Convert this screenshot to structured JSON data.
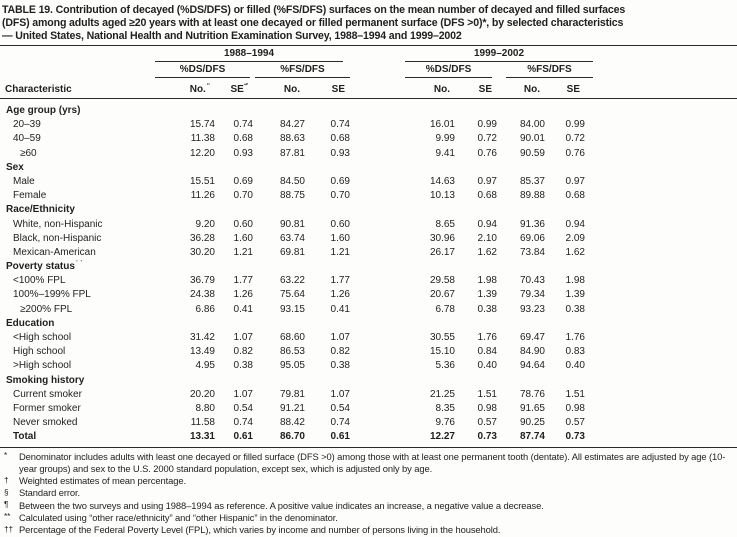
{
  "title_lines": [
    "TABLE 19. Contribution of decayed (%DS/DFS) or filled (%FS/DFS) surfaces on the mean number of decayed and filled surfaces",
    "(DFS) among adults aged ≥20 years with at least one decayed or filled permanent surface (DFS >0)*, by selected characteristics",
    "— United States, National Health and Nutrition Examination Survey, 1988–1994 and 1999–2002"
  ],
  "table": {
    "period_headers": {
      "p1": "1988–1994",
      "p2": "1999–2002"
    },
    "measure_headers": {
      "m1": "%DS/DFS",
      "m2": "%FS/DFS",
      "m3": "%DS/DFS",
      "m4": "%FS/DFS"
    },
    "characteristic_header": "Characteristic",
    "col_headers": [
      {
        "label": "No.",
        "sup": "¶"
      },
      {
        "label": "SE",
        "sup": "§"
      },
      {
        "label": "No.",
        "sup": ""
      },
      {
        "label": "SE",
        "sup": ""
      },
      {
        "label": "No.",
        "sup": ""
      },
      {
        "label": "SE",
        "sup": ""
      },
      {
        "label": "No.",
        "sup": ""
      },
      {
        "label": "SE",
        "sup": ""
      }
    ],
    "rows": [
      {
        "type": "section",
        "label": "Age group (yrs)",
        "sup": ""
      },
      {
        "type": "data",
        "indent": 1,
        "label": "20–39",
        "sup": "",
        "values": [
          "15.74",
          "0.74",
          "84.27",
          "0.74",
          "16.01",
          "0.99",
          "84.00",
          "0.99"
        ]
      },
      {
        "type": "data",
        "indent": 1,
        "label": "40–59",
        "sup": "",
        "values": [
          "11.38",
          "0.68",
          "88.63",
          "0.68",
          "9.99",
          "0.72",
          "90.01",
          "0.72"
        ]
      },
      {
        "type": "data",
        "indent": 2,
        "label": "≥60",
        "sup": "",
        "values": [
          "12.20",
          "0.93",
          "87.81",
          "0.93",
          "9.41",
          "0.76",
          "90.59",
          "0.76"
        ]
      },
      {
        "type": "section",
        "label": "Sex",
        "sup": ""
      },
      {
        "type": "data",
        "indent": 1,
        "label": "Male",
        "sup": "",
        "values": [
          "15.51",
          "0.69",
          "84.50",
          "0.69",
          "14.63",
          "0.97",
          "85.37",
          "0.97"
        ]
      },
      {
        "type": "data",
        "indent": 1,
        "label": "Female",
        "sup": "",
        "values": [
          "11.26",
          "0.70",
          "88.75",
          "0.70",
          "10.13",
          "0.68",
          "89.88",
          "0.68"
        ]
      },
      {
        "type": "section",
        "label": "Race/Ethnicity",
        "sup": "**"
      },
      {
        "type": "data",
        "indent": 1,
        "label": "White, non-Hispanic",
        "sup": "",
        "values": [
          "9.20",
          "0.60",
          "90.81",
          "0.60",
          "8.65",
          "0.94",
          "91.36",
          "0.94"
        ]
      },
      {
        "type": "data",
        "indent": 1,
        "label": "Black, non-Hispanic",
        "sup": "",
        "values": [
          "36.28",
          "1.60",
          "63.74",
          "1.60",
          "30.96",
          "2.10",
          "69.06",
          "2.09"
        ]
      },
      {
        "type": "data",
        "indent": 1,
        "label": "Mexican-American",
        "sup": "",
        "values": [
          "30.20",
          "1.21",
          "69.81",
          "1.21",
          "26.17",
          "1.62",
          "73.84",
          "1.62"
        ]
      },
      {
        "type": "section",
        "label": "Poverty status",
        "sup": "††"
      },
      {
        "type": "data",
        "indent": 1,
        "label": "<100% FPL",
        "sup": "",
        "values": [
          "36.79",
          "1.77",
          "63.22",
          "1.77",
          "29.58",
          "1.98",
          "70.43",
          "1.98"
        ]
      },
      {
        "type": "data",
        "indent": 1,
        "label": "100%–199% FPL",
        "sup": "",
        "values": [
          "24.38",
          "1.26",
          "75.64",
          "1.26",
          "20.67",
          "1.39",
          "79.34",
          "1.39"
        ]
      },
      {
        "type": "data",
        "indent": 2,
        "label": "≥200% FPL",
        "sup": "",
        "values": [
          "6.86",
          "0.41",
          "93.15",
          "0.41",
          "6.78",
          "0.38",
          "93.23",
          "0.38"
        ]
      },
      {
        "type": "section",
        "label": "Education",
        "sup": ""
      },
      {
        "type": "data",
        "indent": 1,
        "label": "<High school",
        "sup": "",
        "values": [
          "31.42",
          "1.07",
          "68.60",
          "1.07",
          "30.55",
          "1.76",
          "69.47",
          "1.76"
        ]
      },
      {
        "type": "data",
        "indent": 1,
        "label": "High school",
        "sup": "",
        "values": [
          "13.49",
          "0.82",
          "86.53",
          "0.82",
          "15.10",
          "0.84",
          "84.90",
          "0.83"
        ]
      },
      {
        "type": "data",
        "indent": 1,
        "label": ">High school",
        "sup": "",
        "values": [
          "4.95",
          "0.38",
          "95.05",
          "0.38",
          "5.36",
          "0.40",
          "94.64",
          "0.40"
        ]
      },
      {
        "type": "section",
        "label": "Smoking history",
        "sup": ""
      },
      {
        "type": "data",
        "indent": 1,
        "label": "Current smoker",
        "sup": "",
        "values": [
          "20.20",
          "1.07",
          "79.81",
          "1.07",
          "21.25",
          "1.51",
          "78.76",
          "1.51"
        ]
      },
      {
        "type": "data",
        "indent": 1,
        "label": "Former smoker",
        "sup": "",
        "values": [
          "8.80",
          "0.54",
          "91.21",
          "0.54",
          "8.35",
          "0.98",
          "91.65",
          "0.98"
        ]
      },
      {
        "type": "data",
        "indent": 1,
        "label": "Never smoked",
        "sup": "",
        "values": [
          "11.58",
          "0.74",
          "88.42",
          "0.74",
          "9.76",
          "0.57",
          "90.25",
          "0.57"
        ]
      },
      {
        "type": "total",
        "indent": 0,
        "label": "Total",
        "sup": "",
        "values": [
          "13.31",
          "0.61",
          "86.70",
          "0.61",
          "12.27",
          "0.73",
          "87.74",
          "0.73"
        ]
      }
    ]
  },
  "footnotes": [
    {
      "marker": "*",
      "text": "Denominator includes adults with least one decayed or filled surface (DFS >0) among those with at least one permanent tooth (dentate).  All estimates are adjusted by age (10-year groups) and sex to the U.S. 2000 standard population, except sex, which is adjusted only by age."
    },
    {
      "marker": "†",
      "text": "Weighted estimates of mean percentage."
    },
    {
      "marker": "§",
      "text": "Standard error."
    },
    {
      "marker": "¶",
      "text": "Between the two surveys and using 1988–1994 as reference. A positive value indicates an increase, a negative value a decrease."
    },
    {
      "marker": "**",
      "text": "Calculated using “other race/ethnicity” and “other Hispanic” in the denominator."
    },
    {
      "marker": "††",
      "text": "Percentage of the Federal Poverty Level (FPL), which varies by income and number of persons living in the household."
    }
  ]
}
